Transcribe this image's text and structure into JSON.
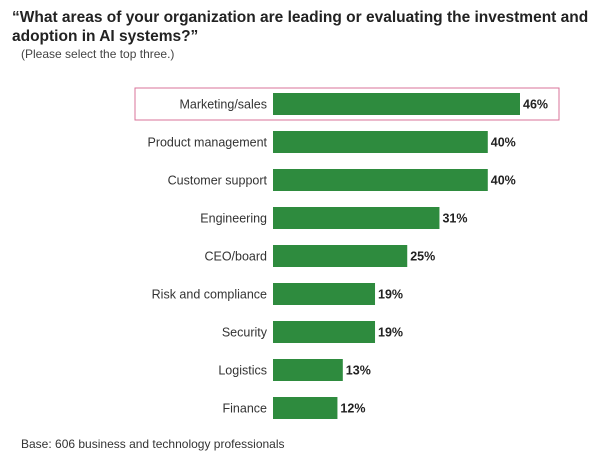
{
  "title": "“What areas of your organization are leading or evaluating the investment and adoption in AI systems?”",
  "subtitle": "(Please select the top three.)",
  "footnote": "Base: 606 business and technology professionals",
  "colors": {
    "bar": "#2e8b3e",
    "highlight_border": "#d9739a",
    "label": "#333333"
  },
  "chart_data": {
    "type": "bar",
    "orientation": "horizontal",
    "categories": [
      "Marketing/sales",
      "Product management",
      "Customer support",
      "Engineering",
      "CEO/board",
      "Risk and compliance",
      "Security",
      "Logistics",
      "Finance"
    ],
    "values": [
      46,
      40,
      40,
      31,
      25,
      19,
      19,
      13,
      12
    ],
    "value_labels": [
      "46%",
      "40%",
      "40%",
      "31%",
      "25%",
      "19%",
      "19%",
      "13%",
      "12%"
    ],
    "highlighted_category": "Marketing/sales",
    "xlim": [
      0,
      46
    ],
    "grid": false,
    "title": "",
    "xlabel": "",
    "ylabel": ""
  }
}
